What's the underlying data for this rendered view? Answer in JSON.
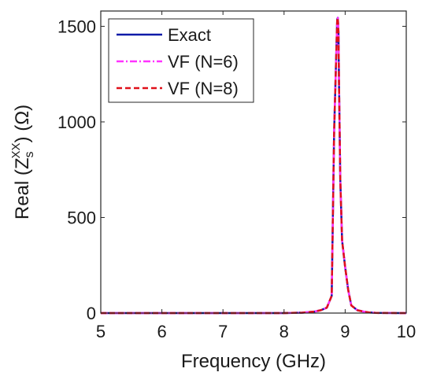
{
  "chart_data": {
    "type": "line",
    "xlabel": "Frequency (GHz)",
    "ylabel": {
      "prefix": "Real (Z",
      "superscript": "XX",
      "subscript": "s",
      "suffix": ") (Ω)"
    },
    "xlim": [
      5,
      10
    ],
    "ylim": [
      0,
      1580
    ],
    "xticks": [
      5,
      6,
      7,
      8,
      9,
      10
    ],
    "yticks": [
      0,
      500,
      1000,
      1500
    ],
    "grid": false,
    "legend_position": "top-left",
    "series": [
      {
        "name": "Exact",
        "color": "#0a1aa8",
        "dash": "solid",
        "x": [
          5.0,
          5.5,
          6.0,
          6.5,
          7.0,
          7.5,
          8.0,
          8.3,
          8.5,
          8.6,
          8.7,
          8.78,
          8.82,
          8.85,
          8.87,
          8.88,
          8.89,
          8.9,
          8.92,
          8.95,
          9.0,
          9.05,
          9.1,
          9.2,
          9.3,
          9.4,
          9.5,
          10.0
        ],
        "y": [
          0,
          0,
          0,
          0,
          0,
          0,
          0,
          2,
          8,
          15,
          28,
          90,
          950,
          1310,
          1535,
          1545,
          1470,
          1200,
          700,
          380,
          240,
          120,
          40,
          15,
          8,
          3,
          1,
          0
        ]
      },
      {
        "name": "VF (N=6)",
        "color": "#ff33ff",
        "dash": "dashdot",
        "x": [
          5.0,
          5.5,
          6.0,
          6.5,
          7.0,
          7.5,
          8.0,
          8.3,
          8.5,
          8.6,
          8.7,
          8.78,
          8.82,
          8.85,
          8.87,
          8.88,
          8.89,
          8.9,
          8.92,
          8.95,
          9.0,
          9.05,
          9.1,
          9.2,
          9.3,
          9.4,
          9.5,
          10.0
        ],
        "y": [
          0,
          0,
          0,
          0,
          0,
          0,
          0,
          2,
          8,
          15,
          28,
          90,
          950,
          1310,
          1535,
          1545,
          1470,
          1200,
          700,
          380,
          240,
          120,
          40,
          15,
          8,
          3,
          1,
          0
        ]
      },
      {
        "name": "VF (N=8)",
        "color": "#e0101a",
        "dash": "dashed",
        "x": [
          5.0,
          5.5,
          6.0,
          6.5,
          7.0,
          7.5,
          8.0,
          8.3,
          8.5,
          8.6,
          8.7,
          8.78,
          8.82,
          8.85,
          8.87,
          8.88,
          8.89,
          8.9,
          8.92,
          8.95,
          9.0,
          9.05,
          9.1,
          9.2,
          9.3,
          9.4,
          9.5,
          10.0
        ],
        "y": [
          0,
          0,
          0,
          0,
          0,
          0,
          0,
          2,
          8,
          15,
          28,
          90,
          950,
          1310,
          1535,
          1545,
          1470,
          1200,
          700,
          380,
          240,
          120,
          40,
          15,
          8,
          3,
          1,
          0
        ]
      }
    ]
  }
}
